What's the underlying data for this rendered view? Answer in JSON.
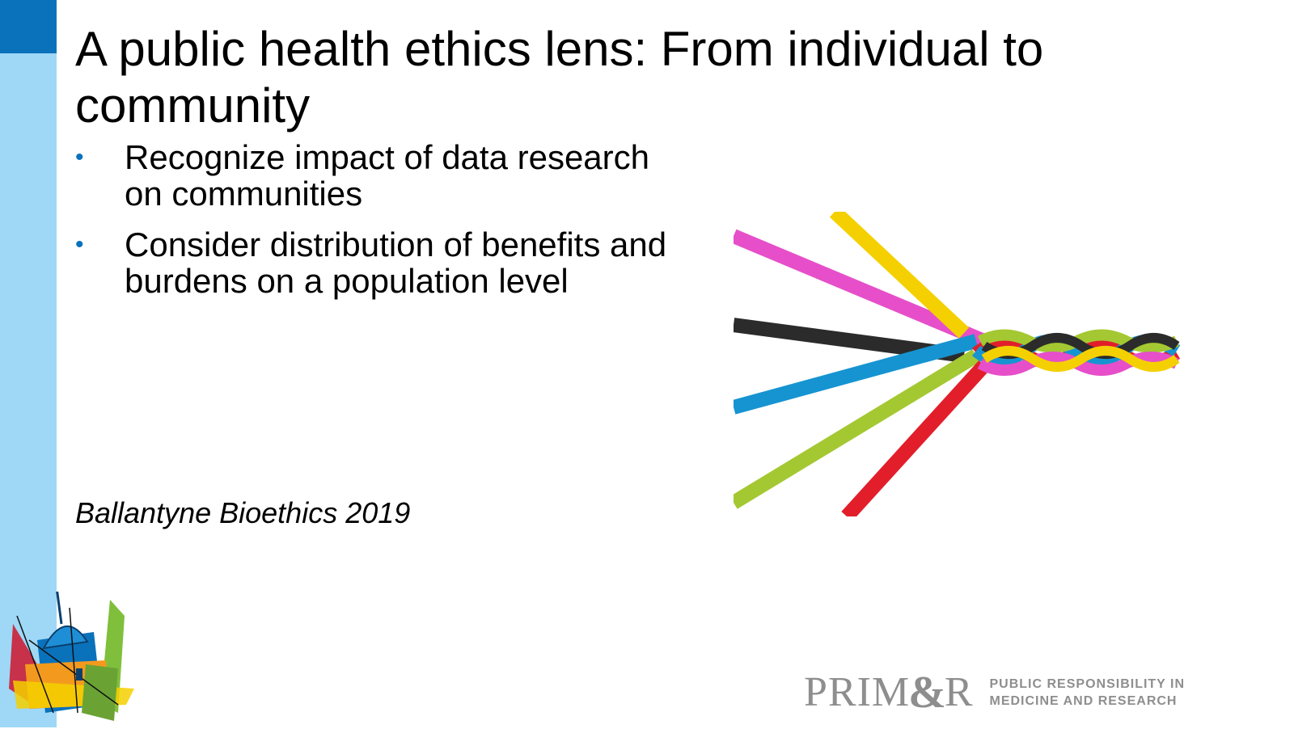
{
  "slide": {
    "title": "A public health ethics lens: From individual to community",
    "bullets": [
      {
        "marker": "•",
        "text": "Recognize impact of data research on communities"
      },
      {
        "marker": "•",
        "text": "Consider distribution of benefits and burdens on a population level"
      }
    ],
    "citation": "Ballantyne Bioethics 2019"
  },
  "logo": {
    "word_left": "PRIM",
    "ampersand": "&",
    "word_right": "R",
    "tagline_line1": "PUBLIC RESPONSIBILITY IN",
    "tagline_line2": "MEDICINE AND RESEARCH"
  },
  "images": {
    "braid": "braided-colored-cords-image",
    "capitol": "capitol-building-illustration"
  },
  "colors": {
    "accent_dark": "#0a72bb",
    "accent_light": "#9ed8f6",
    "logo_gray": "#8e8e8e",
    "cord_magenta": "#e64fc9",
    "cord_yellow": "#f5d000",
    "cord_black": "#2b2b2b",
    "cord_blue": "#1694d1",
    "cord_green": "#a4c832",
    "cord_red": "#e21e2b"
  }
}
